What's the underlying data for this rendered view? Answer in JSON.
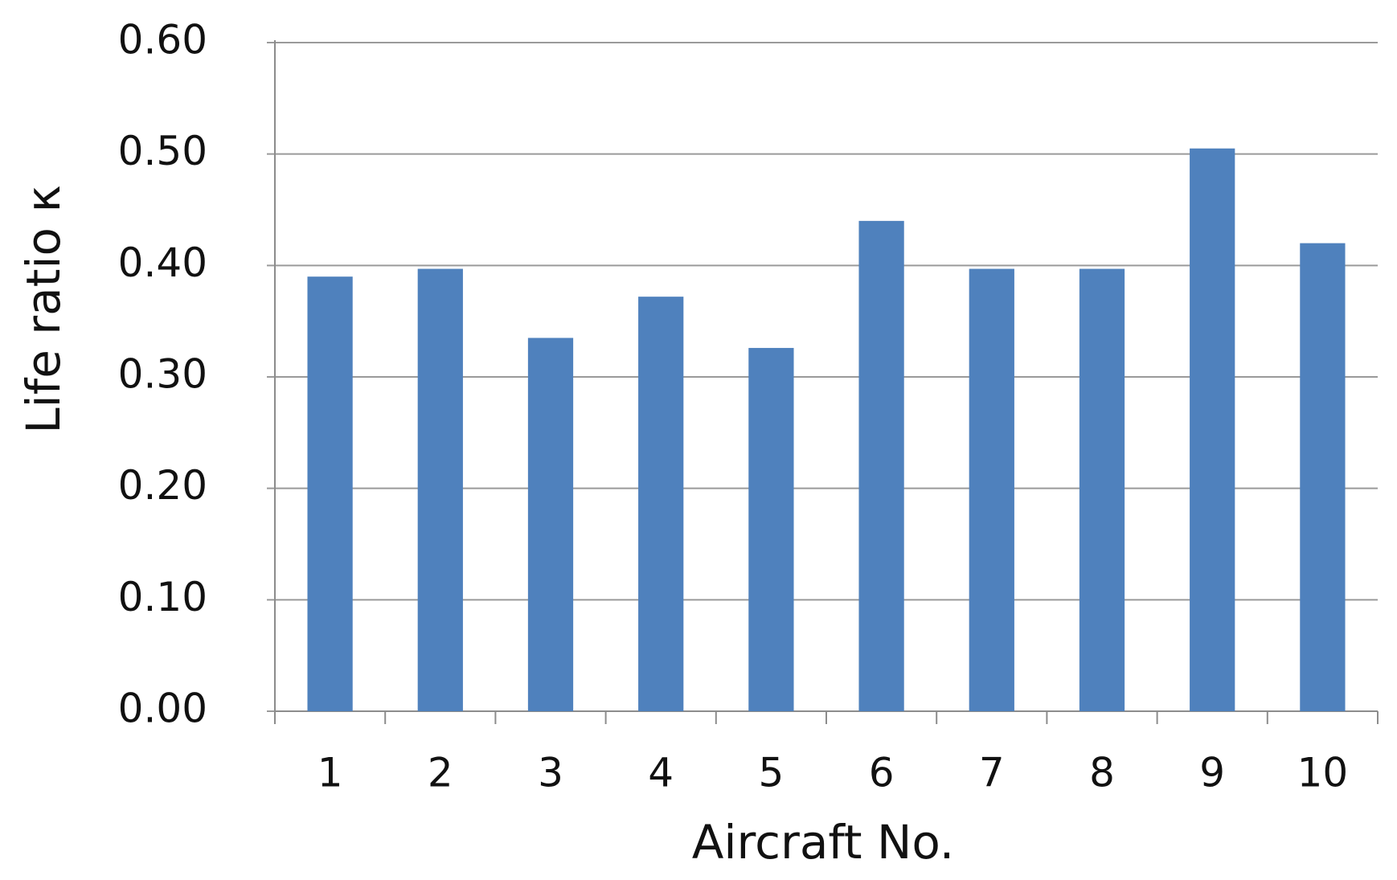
{
  "chart_data": {
    "type": "bar",
    "x_label": "Aircraft No.",
    "y_label": "Life ratio κ",
    "categories": [
      "1",
      "2",
      "3",
      "4",
      "5",
      "6",
      "7",
      "8",
      "9",
      "10"
    ],
    "values": [
      0.39,
      0.397,
      0.335,
      0.372,
      0.326,
      0.44,
      0.397,
      0.397,
      0.505,
      0.42
    ],
    "color": "#4f81bd",
    "ylim": [
      0,
      0.6
    ],
    "yticks": [
      {
        "value": 0,
        "label": "0.00"
      },
      {
        "value": 0.1,
        "label": "0.10"
      },
      {
        "value": 0.2,
        "label": "0.20"
      },
      {
        "value": 0.3,
        "label": "0.30"
      },
      {
        "value": 0.4,
        "label": "0.40"
      },
      {
        "value": 0.5,
        "label": "0.50"
      },
      {
        "value": 0.6,
        "label": "0.60"
      }
    ],
    "grid": true
  }
}
